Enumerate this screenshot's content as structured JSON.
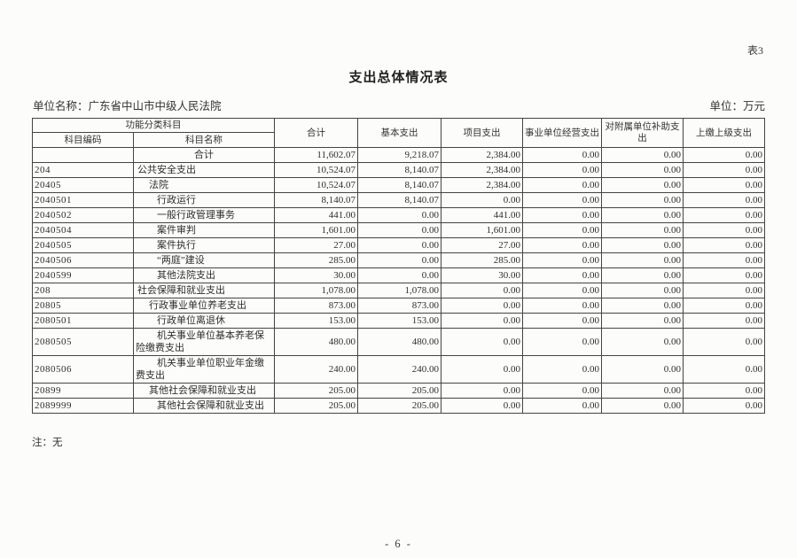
{
  "page": {
    "tag": "表3",
    "title": "支出总体情况表",
    "unit_name": "单位名称：广东省中山市中级人民法院",
    "unit_label": "单位：万元",
    "note": "注：无",
    "page_number": "- 6 -"
  },
  "table": {
    "header": {
      "func_group": "功能分类科目",
      "code": "科目编码",
      "name": "科目名称",
      "total": "合计",
      "basic": "基本支出",
      "project": "项目支出",
      "operating": "事业单位经营支出",
      "subsidy": "对附属单位补助支出",
      "upper": "上缴上级支出"
    },
    "rows": [
      {
        "code": "",
        "name": "合计",
        "level": "center",
        "total": "11,602.07",
        "basic": "9,218.07",
        "project": "2,384.00",
        "operating": "0.00",
        "subsidy": "0.00",
        "upper": "0.00"
      },
      {
        "code": "204",
        "name": "公共安全支出",
        "level": "l1",
        "total": "10,524.07",
        "basic": "8,140.07",
        "project": "2,384.00",
        "operating": "0.00",
        "subsidy": "0.00",
        "upper": "0.00"
      },
      {
        "code": "20405",
        "name": "法院",
        "level": "l2",
        "total": "10,524.07",
        "basic": "8,140.07",
        "project": "2,384.00",
        "operating": "0.00",
        "subsidy": "0.00",
        "upper": "0.00"
      },
      {
        "code": "2040501",
        "name": "行政运行",
        "level": "l3",
        "total": "8,140.07",
        "basic": "8,140.07",
        "project": "0.00",
        "operating": "0.00",
        "subsidy": "0.00",
        "upper": "0.00"
      },
      {
        "code": "2040502",
        "name": "一般行政管理事务",
        "level": "l3",
        "total": "441.00",
        "basic": "0.00",
        "project": "441.00",
        "operating": "0.00",
        "subsidy": "0.00",
        "upper": "0.00"
      },
      {
        "code": "2040504",
        "name": "案件审判",
        "level": "l3",
        "total": "1,601.00",
        "basic": "0.00",
        "project": "1,601.00",
        "operating": "0.00",
        "subsidy": "0.00",
        "upper": "0.00"
      },
      {
        "code": "2040505",
        "name": "案件执行",
        "level": "l3",
        "total": "27.00",
        "basic": "0.00",
        "project": "27.00",
        "operating": "0.00",
        "subsidy": "0.00",
        "upper": "0.00"
      },
      {
        "code": "2040506",
        "name": "“两庭”建设",
        "level": "l3",
        "total": "285.00",
        "basic": "0.00",
        "project": "285.00",
        "operating": "0.00",
        "subsidy": "0.00",
        "upper": "0.00"
      },
      {
        "code": "2040599",
        "name": "其他法院支出",
        "level": "l3",
        "total": "30.00",
        "basic": "0.00",
        "project": "30.00",
        "operating": "0.00",
        "subsidy": "0.00",
        "upper": "0.00"
      },
      {
        "code": "208",
        "name": "社会保障和就业支出",
        "level": "l1",
        "total": "1,078.00",
        "basic": "1,078.00",
        "project": "0.00",
        "operating": "0.00",
        "subsidy": "0.00",
        "upper": "0.00"
      },
      {
        "code": "20805",
        "name": "行政事业单位养老支出",
        "level": "l2",
        "total": "873.00",
        "basic": "873.00",
        "project": "0.00",
        "operating": "0.00",
        "subsidy": "0.00",
        "upper": "0.00"
      },
      {
        "code": "2080501",
        "name": "行政单位离退休",
        "level": "l3",
        "total": "153.00",
        "basic": "153.00",
        "project": "0.00",
        "operating": "0.00",
        "subsidy": "0.00",
        "upper": "0.00"
      },
      {
        "code": "2080505",
        "name": "机关事业单位基本养老保险缴费支出",
        "level": "l3",
        "total": "480.00",
        "basic": "480.00",
        "project": "0.00",
        "operating": "0.00",
        "subsidy": "0.00",
        "upper": "0.00"
      },
      {
        "code": "2080506",
        "name": "机关事业单位职业年金缴费支出",
        "level": "l3",
        "total": "240.00",
        "basic": "240.00",
        "project": "0.00",
        "operating": "0.00",
        "subsidy": "0.00",
        "upper": "0.00"
      },
      {
        "code": "20899",
        "name": "其他社会保障和就业支出",
        "level": "l2",
        "total": "205.00",
        "basic": "205.00",
        "project": "0.00",
        "operating": "0.00",
        "subsidy": "0.00",
        "upper": "0.00"
      },
      {
        "code": "2089999",
        "name": "其他社会保障和就业支出",
        "level": "l3",
        "total": "205.00",
        "basic": "205.00",
        "project": "0.00",
        "operating": "0.00",
        "subsidy": "0.00",
        "upper": "0.00"
      }
    ]
  }
}
